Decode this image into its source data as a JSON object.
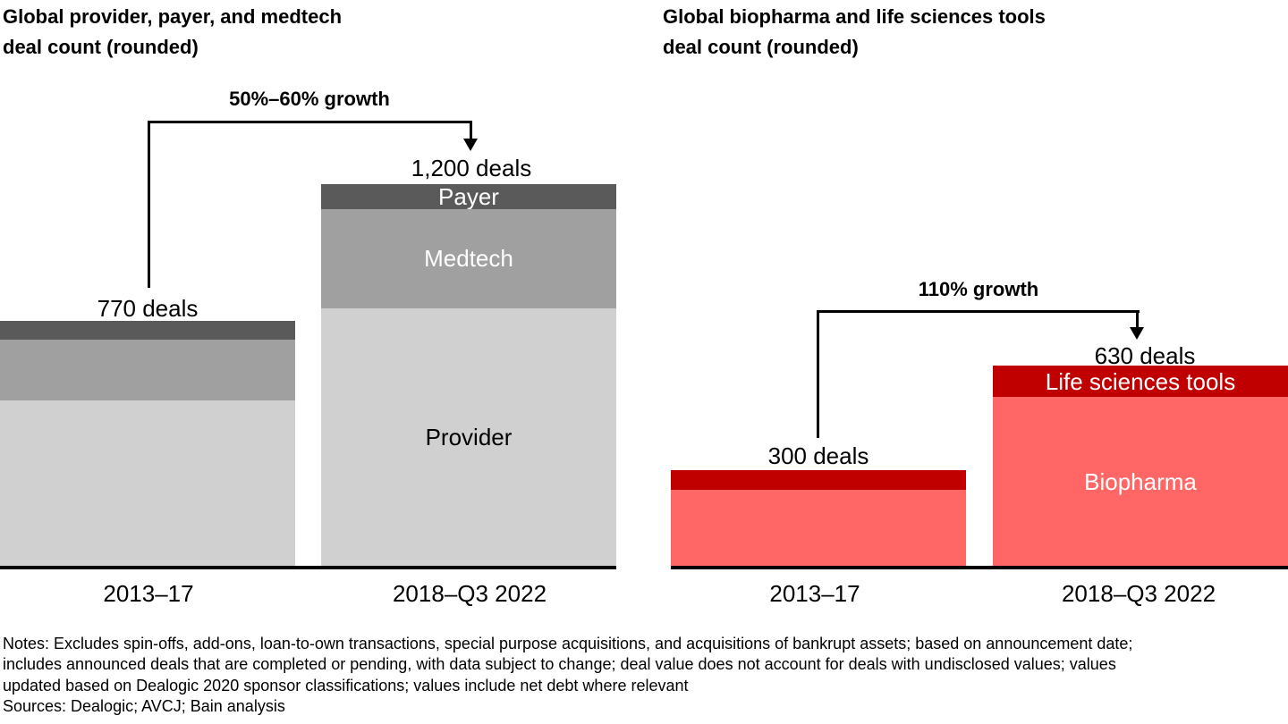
{
  "page": {
    "background": "#ffffff",
    "text_color": "#000000"
  },
  "chart_data": [
    {
      "type": "bar",
      "stacked": true,
      "title": "Global provider, payer, and medtech\ndeal count (rounded)",
      "value_unit": "deals",
      "categories": [
        "2013–17",
        "2018–Q3 2022"
      ],
      "series": [
        {
          "name": "Provider",
          "values": [
            520,
            810
          ],
          "color": "#d0d0d0",
          "label_color": "#000000"
        },
        {
          "name": "Medtech",
          "values": [
            190,
            310
          ],
          "color": "#a0a0a0",
          "label_color": "#ffffff"
        },
        {
          "name": "Payer",
          "values": [
            60,
            80
          ],
          "color": "#5a5a5a",
          "label_color": "#ffffff"
        }
      ],
      "totals": [
        770,
        1200
      ],
      "total_labels": [
        "770 deals",
        "1,200 deals"
      ],
      "growth_annotation": "50%–60% growth",
      "segment_values_estimated_from_proportions": true,
      "layout_hints": {
        "grid": false,
        "y_axis_shown": false,
        "legend": "labels-inside-second-bar",
        "bars_clipped": "first bar clipped at left image edge"
      }
    },
    {
      "type": "bar",
      "stacked": true,
      "title": "Global biopharma and life sciences tools\ndeal count (rounded)",
      "value_unit": "deals",
      "categories": [
        "2013–17",
        "2018–Q3 2022"
      ],
      "series": [
        {
          "name": "Biopharma",
          "values": [
            240,
            530
          ],
          "color": "#ff6666",
          "label_color": "#ffffff"
        },
        {
          "name": "Life sciences tools",
          "values": [
            60,
            100
          ],
          "color": "#c00000",
          "label_color": "#ffffff"
        }
      ],
      "totals": [
        300,
        630
      ],
      "total_labels": [
        "300 deals",
        "630 deals"
      ],
      "growth_annotation": "110% growth",
      "segment_values_estimated_from_proportions": true,
      "layout_hints": {
        "grid": false,
        "y_axis_shown": false,
        "legend": "labels-inside-second-bar",
        "bars_clipped": "second bar clipped at right image edge"
      }
    }
  ],
  "notes": {
    "lines": [
      "Notes: Excludes spin-offs, add-ons, loan-to-own transactions, special purpose acquisitions, and acquisitions of bankrupt assets; based on announcement date;",
      "includes announced deals that are completed or pending, with data subject to change; deal value does not account for deals with undisclosed values; values",
      "updated based on Dealogic 2020 sponsor classifications; values include net debt where relevant",
      "Sources: Dealogic; AVCJ; Bain analysis"
    ]
  }
}
